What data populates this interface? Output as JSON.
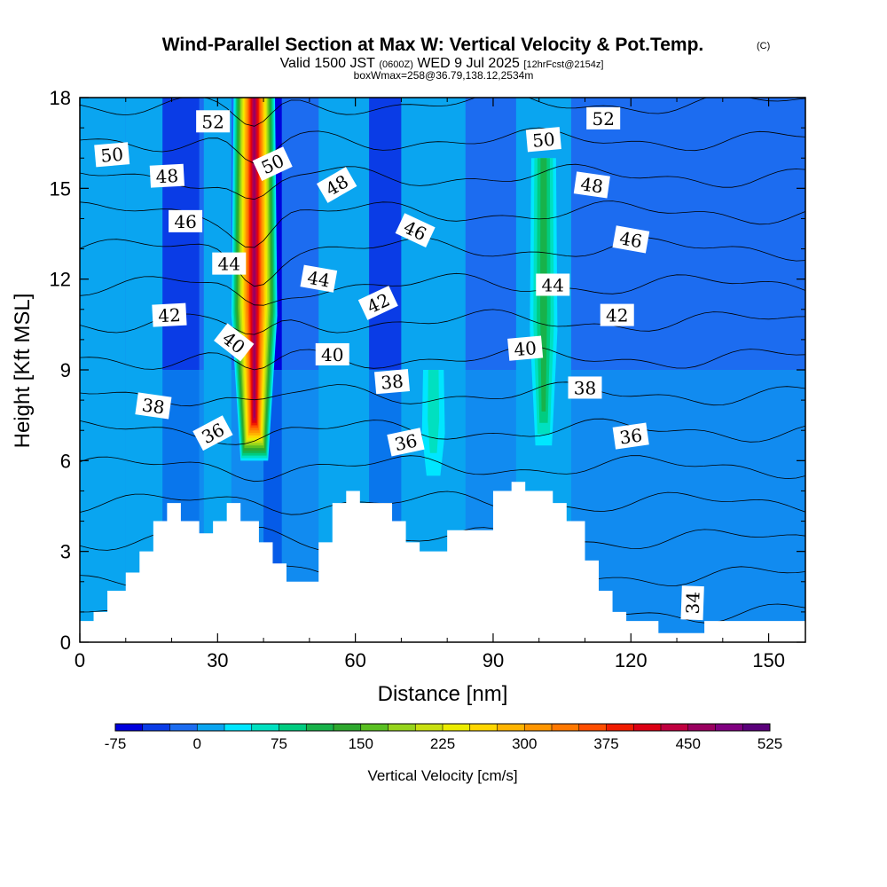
{
  "header": {
    "title": "Wind-Parallel Section at Max W: Vertical Velocity & Pot.Temp.",
    "title_mark": "(C)",
    "valid_lead": "Valid 1500 JST",
    "valid_utc": "(0600Z)",
    "valid_date": "WED 9 Jul 2025",
    "valid_fcst": "[12hrFcst@2154z]",
    "box_line": "boxWmax=258@36.79,138.12,2534m"
  },
  "chart_data": {
    "type": "heatmap",
    "title": "Wind-Parallel Section at Max W: Vertical Velocity & Pot.Temp.",
    "xlabel": "Distance [nm]",
    "ylabel": "Height [Kft MSL]",
    "xlim": [
      0,
      158
    ],
    "ylim": [
      0,
      18
    ],
    "x_ticks": [
      "0",
      "30",
      "60",
      "90",
      "120",
      "150"
    ],
    "x_tick_values": [
      0,
      30,
      60,
      90,
      120,
      150
    ],
    "y_ticks": [
      "0",
      "3",
      "6",
      "9",
      "12",
      "15",
      "18"
    ],
    "y_tick_values": [
      0,
      3,
      6,
      9,
      12,
      15,
      18
    ],
    "colorbar": {
      "label": "Vertical Velocity [cm/s]",
      "tick_labels": [
        "-75",
        "0",
        "75",
        "150",
        "225",
        "300",
        "375",
        "450",
        "525"
      ],
      "tick_values": [
        -75,
        0,
        75,
        150,
        225,
        300,
        375,
        450,
        525
      ],
      "bounds": [
        -75,
        -50,
        -25,
        0,
        25,
        50,
        75,
        100,
        125,
        150,
        175,
        200,
        225,
        250,
        275,
        300,
        325,
        350,
        375,
        400,
        425,
        450,
        475,
        500,
        525
      ],
      "colors": [
        "#0000dd",
        "#0a3ce6",
        "#1c6cf0",
        "#0aa5f0",
        "#00e6ff",
        "#00e0c0",
        "#00cc80",
        "#18b24a",
        "#2ea82e",
        "#5ac022",
        "#96d41c",
        "#c8e010",
        "#ecec00",
        "#ffd600",
        "#ffb400",
        "#ff9600",
        "#ff7800",
        "#ff4e00",
        "#f01c00",
        "#dc0014",
        "#c00040",
        "#9a0060",
        "#800080",
        "#5a007a"
      ]
    },
    "updraft_plumes": [
      {
        "x_center": 38,
        "x_halfwidth": 5,
        "from_height": 6,
        "to_height": 18,
        "peak_w": 450
      },
      {
        "x_center": 101,
        "x_halfwidth": 3,
        "from_height": 6.5,
        "to_height": 16,
        "peak_w": 120
      },
      {
        "x_center": 77,
        "x_halfwidth": 2.5,
        "from_height": 5.5,
        "to_height": 9,
        "peak_w": 70
      }
    ],
    "terrain_kft": {
      "x": [
        0,
        3,
        3,
        6,
        6,
        10,
        10,
        13,
        13,
        16,
        16,
        19,
        19,
        22,
        22,
        26,
        26,
        29,
        29,
        32,
        32,
        35,
        35,
        39,
        39,
        42,
        42,
        45,
        45,
        52,
        52,
        55,
        55,
        58,
        58,
        61,
        61,
        68,
        68,
        71,
        71,
        74,
        74,
        77,
        77,
        80,
        80,
        84,
        84,
        90,
        90,
        94,
        94,
        97,
        97,
        103,
        103,
        106,
        106,
        110,
        110,
        113,
        113,
        116,
        116,
        119,
        119,
        126,
        126,
        130,
        130,
        136,
        136,
        158
      ],
      "y": [
        0.7,
        0.7,
        1.0,
        1.0,
        1.7,
        1.7,
        2.3,
        2.3,
        3.0,
        3.0,
        4.0,
        4.0,
        4.6,
        4.6,
        4.0,
        4.0,
        3.6,
        3.6,
        4.0,
        4.0,
        4.6,
        4.6,
        4.0,
        4.0,
        3.3,
        3.3,
        2.6,
        2.6,
        2.0,
        2.0,
        3.3,
        3.3,
        4.6,
        4.6,
        5.0,
        5.0,
        4.6,
        4.6,
        4.0,
        4.0,
        3.3,
        3.3,
        3.0,
        3.0,
        3.0,
        3.0,
        3.7,
        3.7,
        3.7,
        3.7,
        5.0,
        5.0,
        5.3,
        5.3,
        5.0,
        5.0,
        4.6,
        4.6,
        4.0,
        4.0,
        2.7,
        2.7,
        1.7,
        1.7,
        1.0,
        1.0,
        0.7,
        0.7,
        0.3,
        0.3,
        0.3,
        0.3,
        0.7,
        0.7
      ]
    },
    "theta_contours": {
      "levels": [
        33,
        34,
        35,
        36,
        37,
        38,
        39,
        40,
        41,
        42,
        43,
        44,
        45,
        46,
        47,
        48,
        49,
        50,
        51,
        52,
        53
      ],
      "labels": [
        {
          "text": "50",
          "x": 7,
          "y": 16.1,
          "angle": -5
        },
        {
          "text": "48",
          "x": 19,
          "y": 15.4,
          "angle": -3
        },
        {
          "text": "52",
          "x": 29,
          "y": 17.2,
          "angle": 0
        },
        {
          "text": "46",
          "x": 23,
          "y": 13.9,
          "angle": 0
        },
        {
          "text": "44",
          "x": 32.5,
          "y": 12.5,
          "angle": 0
        },
        {
          "text": "42",
          "x": 19.5,
          "y": 10.8,
          "angle": -3
        },
        {
          "text": "40",
          "x": 33.5,
          "y": 9.9,
          "angle": 38
        },
        {
          "text": "38",
          "x": 16,
          "y": 7.8,
          "angle": 8
        },
        {
          "text": "36",
          "x": 29,
          "y": 6.9,
          "angle": -28
        },
        {
          "text": "50",
          "x": 42,
          "y": 15.8,
          "angle": -25
        },
        {
          "text": "48",
          "x": 56,
          "y": 15.1,
          "angle": -30
        },
        {
          "text": "46",
          "x": 73,
          "y": 13.6,
          "angle": 25
        },
        {
          "text": "44",
          "x": 52,
          "y": 12.0,
          "angle": 10
        },
        {
          "text": "42",
          "x": 65,
          "y": 11.2,
          "angle": -25
        },
        {
          "text": "40",
          "x": 55,
          "y": 9.5,
          "angle": 0
        },
        {
          "text": "38",
          "x": 68,
          "y": 8.6,
          "angle": -5
        },
        {
          "text": "36",
          "x": 71,
          "y": 6.6,
          "angle": -12
        },
        {
          "text": "52",
          "x": 114,
          "y": 17.3,
          "angle": 0
        },
        {
          "text": "50",
          "x": 101,
          "y": 16.6,
          "angle": -5
        },
        {
          "text": "48",
          "x": 111.5,
          "y": 15.1,
          "angle": 8
        },
        {
          "text": "46",
          "x": 120,
          "y": 13.3,
          "angle": 10
        },
        {
          "text": "44",
          "x": 103,
          "y": 11.8,
          "angle": 0
        },
        {
          "text": "42",
          "x": 117,
          "y": 10.8,
          "angle": 0
        },
        {
          "text": "40",
          "x": 97,
          "y": 9.7,
          "angle": -5
        },
        {
          "text": "38",
          "x": 110,
          "y": 8.4,
          "angle": 0
        },
        {
          "text": "36",
          "x": 120,
          "y": 6.8,
          "angle": -8
        },
        {
          "text": "34",
          "x": 133.5,
          "y": 1.3,
          "angle": -88
        }
      ]
    }
  }
}
